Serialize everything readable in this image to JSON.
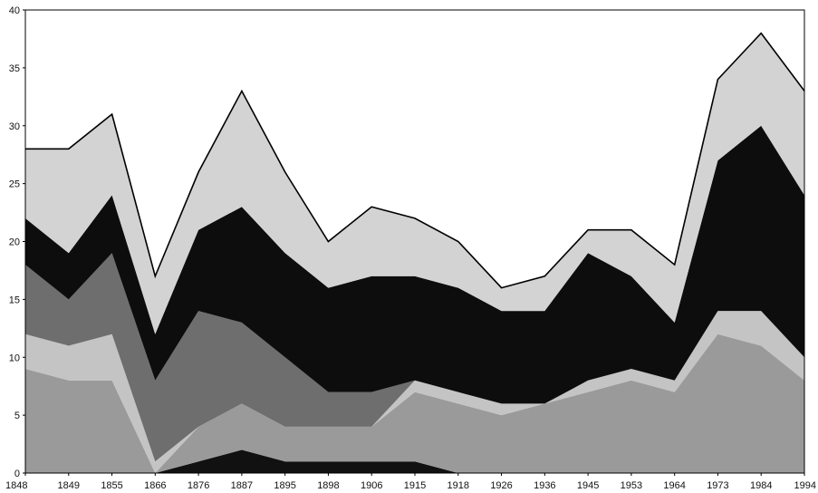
{
  "chart_data": {
    "type": "area",
    "stacked": true,
    "title": "",
    "xlabel": "",
    "ylabel": "",
    "ylim": [
      0,
      40
    ],
    "yticks": [
      0,
      5,
      10,
      15,
      20,
      25,
      30,
      35,
      40
    ],
    "grid": false,
    "legend": "none",
    "categories": [
      "1848",
      "1849",
      "1855",
      "1866",
      "1876",
      "1887",
      "1895",
      "1898",
      "1906",
      "1915",
      "1918",
      "1926",
      "1936",
      "1945",
      "1953",
      "1964",
      "1973",
      "1984",
      "1994"
    ],
    "series": [
      {
        "values": [
          0,
          0,
          0,
          0,
          1,
          2,
          1,
          1,
          1,
          1,
          0,
          0,
          0,
          0,
          0,
          0,
          0,
          0,
          0
        ],
        "color": "#111111"
      },
      {
        "values": [
          9,
          8,
          8,
          0,
          3,
          4,
          3,
          3,
          3,
          6,
          6,
          5,
          6,
          7,
          8,
          7,
          12,
          11,
          8
        ],
        "color": "#9a9a9a"
      },
      {
        "values": [
          3,
          3,
          4,
          1,
          0,
          0,
          0,
          0,
          0,
          1,
          1,
          1,
          0,
          1,
          1,
          1,
          2,
          3,
          2
        ],
        "color": "#c4c4c4"
      },
      {
        "values": [
          6,
          4,
          7,
          7,
          10,
          7,
          6,
          3,
          3,
          0,
          0,
          0,
          0,
          0,
          0,
          0,
          0,
          0,
          0
        ],
        "color": "#6e6e6e"
      },
      {
        "values": [
          4,
          4,
          5,
          4,
          7,
          10,
          9,
          9,
          10,
          9,
          9,
          8,
          8,
          11,
          8,
          5,
          13,
          16,
          14
        ],
        "color": "#0d0d0d"
      },
      {
        "values": [
          6,
          9,
          7,
          5,
          5,
          10,
          7,
          4,
          6,
          5,
          4,
          2,
          3,
          2,
          4,
          5,
          7,
          8,
          9
        ],
        "color": "#d3d3d3"
      }
    ]
  }
}
